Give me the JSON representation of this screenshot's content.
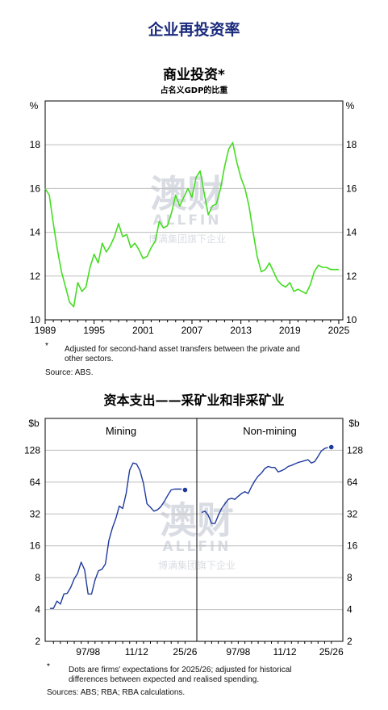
{
  "page_title": "企业再投资率",
  "watermark": {
    "big": "澳财",
    "brand": "ALLFIN",
    "tagline": "博满集团旗下企业"
  },
  "chart1": {
    "title": "商业投资*",
    "subtitle": "占名义GDP的比重",
    "unit_left": "%",
    "unit_right": "%",
    "footnote_mark": "*",
    "footnote": "Adjusted for second-hand asset transfers between the private and other sectors.",
    "footnote_line1": "Adjusted for second-hand asset transfers between the private and",
    "footnote_line2": "other sectors.",
    "source": "Source:   ABS.",
    "line_color": "#44dd22"
  },
  "chart2": {
    "title": "资本支出——采矿业和非采矿业",
    "unit_left": "$b",
    "unit_right": "$b",
    "footnote_mark": "*",
    "footnote_line1": "Dots are firms' expectations for 2025/26; adjusted for historical",
    "footnote_line2": "differences between expected and realised spending.",
    "source": "Sources: ABS; RBA; RBA calculations.",
    "line_color": "#1f3a9e"
  },
  "chart_data": [
    {
      "type": "line",
      "title": "商业投资*",
      "subtitle": "占名义GDP的比重",
      "xlabel": "",
      "ylabel": "%",
      "xlim": [
        1989,
        2025.5
      ],
      "ylim": [
        10,
        20
      ],
      "yticks": [
        10,
        12,
        14,
        16,
        18
      ],
      "xticks": [
        1989,
        1995,
        2001,
        2007,
        2013,
        2019,
        2025
      ],
      "grid": true,
      "series": [
        {
          "x": [
            1989.0,
            1989.5,
            1990.0,
            1990.5,
            1991.0,
            1991.5,
            1992.0,
            1992.5,
            1993.0,
            1993.5,
            1994.0,
            1994.5,
            1995.0,
            1995.5,
            1996.0,
            1996.5,
            1997.0,
            1997.5,
            1998.0,
            1998.5,
            1999.0,
            1999.5,
            2000.0,
            2000.5,
            2001.0,
            2001.5,
            2002.0,
            2002.5,
            2003.0,
            2003.5,
            2004.0,
            2004.5,
            2005.0,
            2005.5,
            2006.0,
            2006.5,
            2007.0,
            2007.5,
            2008.0,
            2008.5,
            2009.0,
            2009.5,
            2010.0,
            2010.5,
            2011.0,
            2011.5,
            2012.0,
            2012.5,
            2013.0,
            2013.5,
            2014.0,
            2014.5,
            2015.0,
            2015.5,
            2016.0,
            2016.5,
            2017.0,
            2017.5,
            2018.0,
            2018.5,
            2019.0,
            2019.5,
            2020.0,
            2020.5,
            2021.0,
            2021.5,
            2022.0,
            2022.5,
            2023.0,
            2023.5,
            2024.0,
            2024.5,
            2025.0
          ],
          "y": [
            16.0,
            15.7,
            14.4,
            13.2,
            12.2,
            11.5,
            10.8,
            10.6,
            11.7,
            11.3,
            11.5,
            12.4,
            13.0,
            12.6,
            13.5,
            13.1,
            13.4,
            13.8,
            14.4,
            13.8,
            13.9,
            13.3,
            13.5,
            13.2,
            12.8,
            12.9,
            13.3,
            13.6,
            14.5,
            14.2,
            14.3,
            14.9,
            15.7,
            15.2,
            15.6,
            16.0,
            15.6,
            16.5,
            16.8,
            15.8,
            14.8,
            15.2,
            15.3,
            16.0,
            17.0,
            17.8,
            18.1,
            17.2,
            16.5,
            16.0,
            15.2,
            14.0,
            12.9,
            12.2,
            12.3,
            12.6,
            12.2,
            11.8,
            11.6,
            11.5,
            11.7,
            11.3,
            11.4,
            11.3,
            11.2,
            11.6,
            12.2,
            12.5,
            12.4,
            12.4,
            12.3,
            12.3,
            12.3
          ]
        }
      ]
    },
    {
      "type": "line",
      "title": "Mining",
      "xlabel": "",
      "ylabel": "$b",
      "y_scale": "log2",
      "ylim": [
        2,
        256
      ],
      "yticks": [
        2,
        4,
        8,
        16,
        32,
        64,
        128
      ],
      "xlim": [
        1986,
        2027
      ],
      "xticks_labels": [
        "97/98",
        "11/12",
        "25/26"
      ],
      "xticks": [
        1997,
        2011,
        2025
      ],
      "grid": true,
      "series": [
        {
          "x": [
            1986,
            1987,
            1988,
            1989,
            1990,
            1991,
            1992,
            1993,
            1994,
            1995,
            1996,
            1997,
            1998,
            1999,
            2000,
            2001,
            2002,
            2003,
            2004,
            2005,
            2006,
            2007,
            2008,
            2009,
            2010,
            2011,
            2012,
            2013,
            2014,
            2015,
            2016,
            2017,
            2018,
            2019,
            2020,
            2021,
            2022,
            2023,
            2024
          ],
          "y": [
            4.1,
            4.1,
            4.8,
            4.5,
            5.6,
            5.7,
            6.5,
            7.8,
            8.8,
            11.2,
            9.5,
            5.6,
            5.6,
            7.6,
            9.3,
            9.6,
            10.8,
            18.0,
            23.5,
            29.0,
            38.0,
            36.0,
            50.0,
            83.0,
            97.0,
            95.0,
            82.0,
            62.0,
            40.0,
            37.0,
            34.0,
            35.0,
            37.5,
            42.0,
            48.0,
            54.0,
            55.0,
            55.0,
            55.0
          ]
        }
      ],
      "expectation_point": {
        "x": 2025,
        "y": 54
      }
    },
    {
      "type": "line",
      "title": "Non-mining",
      "xlabel": "",
      "ylabel": "$b",
      "y_scale": "log2",
      "ylim": [
        2,
        256
      ],
      "yticks": [
        2,
        4,
        8,
        16,
        32,
        64,
        128
      ],
      "xlim": [
        1986,
        2027
      ],
      "xticks_labels": [
        "97/98",
        "11/12",
        "25/26"
      ],
      "xticks": [
        1997,
        2011,
        2025
      ],
      "grid": true,
      "series": [
        {
          "x": [
            1986,
            1987,
            1988,
            1989,
            1990,
            1991,
            1992,
            1993,
            1994,
            1995,
            1996,
            1997,
            1998,
            1999,
            2000,
            2001,
            2002,
            2003,
            2004,
            2005,
            2006,
            2007,
            2008,
            2009,
            2010,
            2011,
            2012,
            2013,
            2014,
            2015,
            2016,
            2017,
            2018,
            2019,
            2020,
            2021,
            2022,
            2023,
            2024
          ],
          "y": [
            33.0,
            34.0,
            31.0,
            26.0,
            26.0,
            31.0,
            36.0,
            40.0,
            44.0,
            45.0,
            44.0,
            47.0,
            50.0,
            52.0,
            50.0,
            58.0,
            66.0,
            73.0,
            78.0,
            86.0,
            90.0,
            88.0,
            88.0,
            80.0,
            82.0,
            85.0,
            90.0,
            92.0,
            95.0,
            98.0,
            100.0,
            102.0,
            104.0,
            97.0,
            100.0,
            112.0,
            126.0,
            133.0,
            136.0
          ]
        }
      ],
      "expectation_point": {
        "x": 2025,
        "y": 137
      }
    }
  ]
}
